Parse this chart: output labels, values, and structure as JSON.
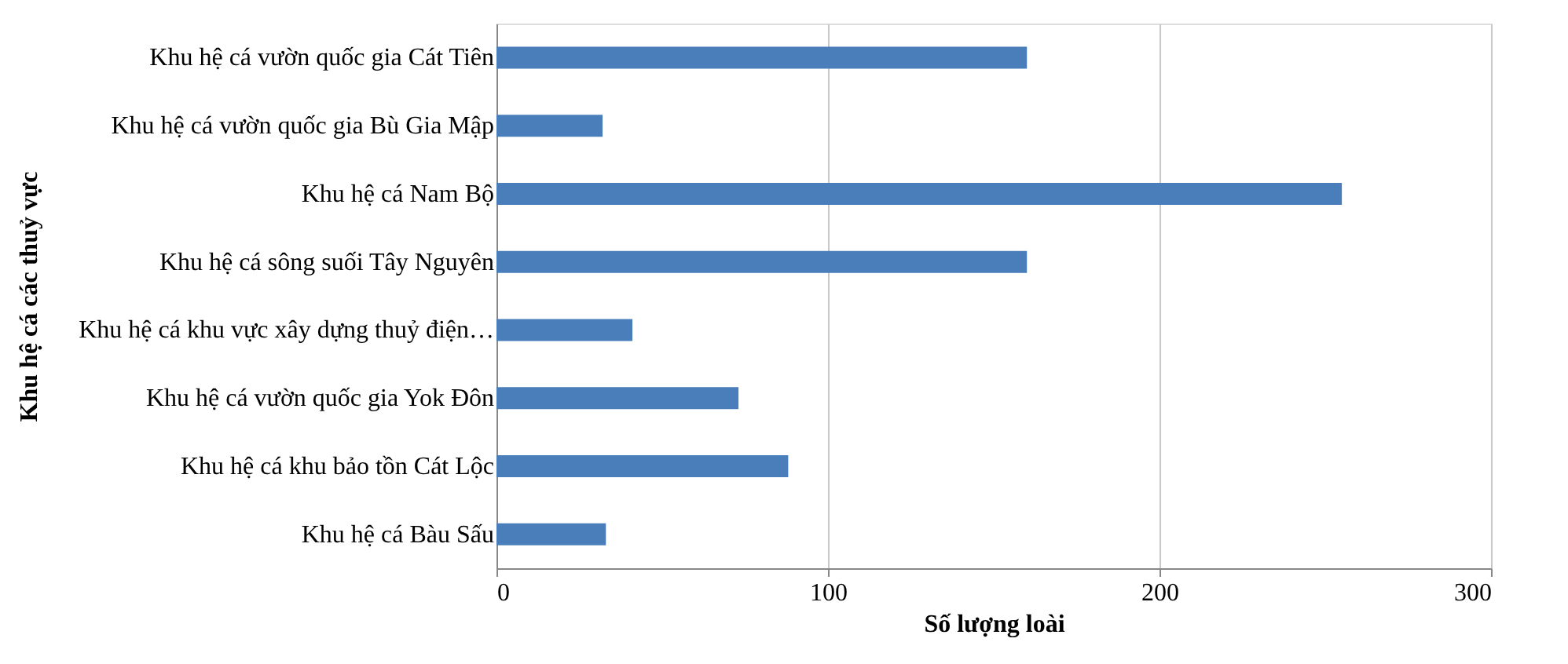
{
  "chart_data": {
    "type": "bar",
    "orientation": "horizontal",
    "xlabel": "Số lượng loài",
    "ylabel": "Khu hệ cá các thuỷ vực",
    "categories": [
      "Khu hệ cá vườn quốc gia Cát Tiên",
      "Khu hệ cá vườn quốc gia Bù Gia Mập",
      "Khu hệ cá Nam Bộ",
      "Khu hệ cá sông suối Tây  Nguyên",
      "Khu hệ cá khu vực xây dựng thuỷ điện…",
      "Khu hệ cá vườn quốc gia Yok Đôn",
      "Khu hệ cá khu bảo tồn Cát Lộc",
      "Khu hệ cá Bàu Sấu"
    ],
    "values": [
      160,
      32,
      255,
      160,
      41,
      73,
      88,
      33
    ],
    "color": "#4a7ebb",
    "xlim": [
      0,
      300
    ],
    "xticks": [
      0,
      100,
      200,
      300
    ],
    "grid": "x"
  }
}
